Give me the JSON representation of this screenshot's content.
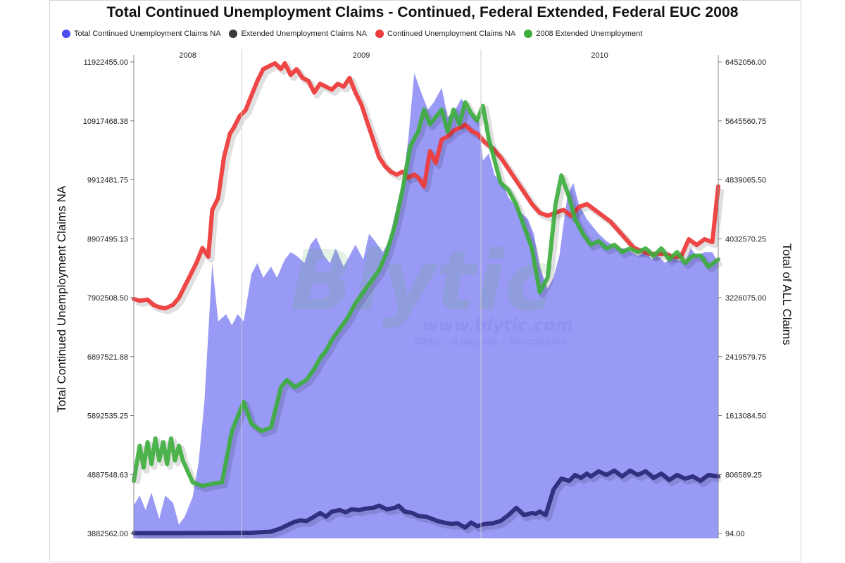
{
  "chart_data": {
    "type": "line",
    "title": "Total Continued Unemployment Claims - Continued, Federal Extended, Federal EUC 2008",
    "ylabel": "Total Continued Unemployment Claims NA",
    "y2label": "Total of ALL Claims",
    "ylim": [
      3882562.0,
      11922455.0
    ],
    "y2lim": [
      94.0,
      6452056.0
    ],
    "yticks": [
      "3882562.00",
      "4887548.63",
      "5892535.25",
      "6897521.88",
      "7902508.50",
      "8907495.13",
      "9912481.75",
      "10917468.38",
      "11922455.00"
    ],
    "y2ticks": [
      "94.00",
      "806589.25",
      "1613084.50",
      "2419579.75",
      "3226075.00",
      "4032570.25",
      "4839065.50",
      "5645560.75",
      "6452056.00"
    ],
    "xlim": [
      2007.95,
      2010.93
    ],
    "year_markers": [
      {
        "label": "2008",
        "x": 2007.95,
        "end": 2008.5
      },
      {
        "label": "2009",
        "x": 2008.5,
        "end": 2009.72
      },
      {
        "label": "2010",
        "x": 2009.72,
        "end": 2010.93
      }
    ],
    "legend_position": "top",
    "grid": false,
    "series": [
      {
        "name": "Total Continued Unemployment Claims NA",
        "kind": "area",
        "axis": "right",
        "color": "#5a5af0",
        "x": [
          2007.95,
          2007.98,
          2008.01,
          2008.04,
          2008.08,
          2008.11,
          2008.15,
          2008.18,
          2008.21,
          2008.25,
          2008.28,
          2008.31,
          2008.35,
          2008.38,
          2008.42,
          2008.45,
          2008.48,
          2008.51,
          2008.55,
          2008.58,
          2008.61,
          2008.65,
          2008.68,
          2008.72,
          2008.75,
          2008.78,
          2008.82,
          2008.85,
          2008.88,
          2008.92,
          2008.95,
          2008.98,
          2009.02,
          2009.05,
          2009.08,
          2009.12,
          2009.15,
          2009.18,
          2009.22,
          2009.25,
          2009.28,
          2009.32,
          2009.35,
          2009.38,
          2009.42,
          2009.45,
          2009.48,
          2009.52,
          2009.55,
          2009.58,
          2009.62,
          2009.65,
          2009.68,
          2009.71,
          2009.73,
          2009.76,
          2009.79,
          2009.83,
          2009.86,
          2009.89,
          2009.92,
          2009.96,
          2009.99,
          2010.02,
          2010.06,
          2010.09,
          2010.12,
          2010.16,
          2010.19,
          2010.22,
          2010.26,
          2010.29,
          2010.32,
          2010.36,
          2010.39,
          2010.42,
          2010.46,
          2010.49,
          2010.52,
          2010.56,
          2010.59,
          2010.62,
          2010.66,
          2010.69,
          2010.72,
          2010.76,
          2010.79,
          2010.82,
          2010.86,
          2010.9,
          2010.93
        ],
        "values": [
          380000,
          520000,
          320000,
          560000,
          200000,
          520000,
          420000,
          120000,
          230000,
          500000,
          960000,
          1800000,
          3700000,
          2900000,
          3000000,
          2850000,
          3000000,
          2900000,
          3550000,
          3700000,
          3500000,
          3650000,
          3500000,
          3750000,
          3850000,
          3800000,
          3700000,
          3950000,
          4050000,
          3800000,
          3700000,
          3900000,
          3650000,
          3800000,
          3950000,
          3750000,
          4100000,
          4000000,
          3850000,
          4000000,
          4350000,
          4800000,
          5400000,
          6300000,
          6000000,
          5800000,
          5900000,
          6100000,
          5700000,
          5750000,
          5950000,
          5800000,
          5700000,
          5650000,
          5100000,
          5200000,
          4900000,
          4800000,
          4600000,
          4500000,
          4400000,
          4300000,
          4100000,
          3650000,
          3350000,
          3500000,
          3800000,
          4600000,
          4800000,
          4500000,
          4300000,
          4200000,
          4100000,
          4000000,
          3950000,
          3900000,
          3900000,
          3850000,
          3800000,
          3850000,
          3750000,
          3800000,
          3700000,
          3800000,
          3750000,
          3700000,
          3900000,
          3800000,
          3850000,
          3850000,
          3700000
        ]
      },
      {
        "name": "Extended Unemployment Claims NA",
        "kind": "line",
        "axis": "right",
        "color": "#2d2a7a",
        "x": [
          2007.95,
          2008.1,
          2008.25,
          2008.4,
          2008.55,
          2008.65,
          2008.7,
          2008.73,
          2008.77,
          2008.8,
          2008.83,
          2008.87,
          2008.9,
          2008.93,
          2008.96,
          2009.0,
          2009.03,
          2009.06,
          2009.1,
          2009.13,
          2009.17,
          2009.2,
          2009.24,
          2009.28,
          2009.3,
          2009.33,
          2009.37,
          2009.4,
          2009.44,
          2009.47,
          2009.5,
          2009.53,
          2009.57,
          2009.6,
          2009.64,
          2009.67,
          2009.7,
          2009.74,
          2009.78,
          2009.82,
          2009.86,
          2009.9,
          2009.94,
          2009.98,
          2010.0,
          2010.02,
          2010.05,
          2010.09,
          2010.13,
          2010.17,
          2010.2,
          2010.23,
          2010.26,
          2010.28,
          2010.32,
          2010.36,
          2010.4,
          2010.44,
          2010.48,
          2010.52,
          2010.56,
          2010.6,
          2010.64,
          2010.68,
          2010.72,
          2010.76,
          2010.8,
          2010.84,
          2010.88,
          2010.93
        ],
        "values": [
          5000,
          5000,
          6000,
          8000,
          10000,
          25000,
          70000,
          110000,
          160000,
          180000,
          170000,
          230000,
          280000,
          230000,
          300000,
          320000,
          290000,
          330000,
          320000,
          340000,
          350000,
          380000,
          330000,
          350000,
          380000,
          300000,
          280000,
          240000,
          230000,
          200000,
          170000,
          150000,
          130000,
          140000,
          80000,
          150000,
          100000,
          130000,
          140000,
          170000,
          250000,
          350000,
          250000,
          280000,
          270000,
          300000,
          250000,
          600000,
          750000,
          720000,
          800000,
          760000,
          820000,
          780000,
          850000,
          800000,
          860000,
          780000,
          860000,
          800000,
          850000,
          760000,
          820000,
          730000,
          800000,
          750000,
          780000,
          720000,
          800000,
          780000
        ]
      },
      {
        "name": "Continued Unemployment Claims NA",
        "kind": "line",
        "axis": "left",
        "color": "#ee3c3c",
        "x": [
          2007.95,
          2007.98,
          2008.02,
          2008.05,
          2008.08,
          2008.11,
          2008.15,
          2008.18,
          2008.21,
          2008.24,
          2008.27,
          2008.3,
          2008.33,
          2008.35,
          2008.38,
          2008.41,
          2008.44,
          2008.46,
          2008.49,
          2008.52,
          2008.55,
          2008.58,
          2008.61,
          2008.64,
          2008.67,
          2008.7,
          2008.72,
          2008.75,
          2008.78,
          2008.81,
          2008.84,
          2008.87,
          2008.9,
          2008.93,
          2008.96,
          2008.99,
          2009.02,
          2009.05,
          2009.08,
          2009.11,
          2009.14,
          2009.17,
          2009.2,
          2009.23,
          2009.26,
          2009.29,
          2009.32,
          2009.35,
          2009.38,
          2009.4,
          2009.43,
          2009.46,
          2009.49,
          2009.52,
          2009.55,
          2009.58,
          2009.61,
          2009.64,
          2009.67,
          2009.7,
          2009.74,
          2009.78,
          2009.82,
          2009.86,
          2009.9,
          2009.94,
          2009.98,
          2010.02,
          2010.06,
          2010.1,
          2010.14,
          2010.18,
          2010.22,
          2010.26,
          2010.3,
          2010.34,
          2010.38,
          2010.42,
          2010.46,
          2010.5,
          2010.54,
          2010.58,
          2010.62,
          2010.66,
          2010.7,
          2010.74,
          2010.78,
          2010.82,
          2010.86,
          2010.9,
          2010.93
        ],
        "values": [
          7880000,
          7850000,
          7870000,
          7780000,
          7740000,
          7720000,
          7780000,
          7900000,
          8100000,
          8300000,
          8500000,
          8750000,
          8600000,
          9400000,
          9600000,
          10300000,
          10700000,
          10800000,
          11000000,
          11100000,
          11350000,
          11600000,
          11800000,
          11850000,
          11900000,
          11800000,
          11900000,
          11700000,
          11800000,
          11650000,
          11600000,
          11400000,
          11550000,
          11500000,
          11450000,
          11550000,
          11500000,
          11650000,
          11400000,
          11200000,
          10900000,
          10600000,
          10300000,
          10150000,
          10050000,
          10000000,
          10050000,
          9950000,
          10000000,
          9950000,
          9800000,
          10400000,
          10200000,
          10600000,
          10650000,
          10750000,
          10800000,
          10850000,
          10750000,
          10700000,
          10550000,
          10450000,
          10300000,
          10100000,
          9900000,
          9700000,
          9500000,
          9350000,
          9300000,
          9350000,
          9400000,
          9300000,
          9450000,
          9500000,
          9400000,
          9300000,
          9200000,
          9050000,
          8900000,
          8750000,
          8700000,
          8650000,
          8650000,
          8650000,
          8600000,
          8600000,
          8900000,
          8800000,
          8900000,
          8850000,
          9800000
        ]
      },
      {
        "name": "2008 Extended Unemployment",
        "kind": "line",
        "axis": "right",
        "color": "#3cae3c",
        "x": [
          2007.95,
          2007.98,
          2008.0,
          2008.02,
          2008.04,
          2008.06,
          2008.08,
          2008.1,
          2008.12,
          2008.14,
          2008.16,
          2008.18,
          2008.2,
          2008.25,
          2008.3,
          2008.35,
          2008.4,
          2008.45,
          2008.48,
          2008.51,
          2008.55,
          2008.6,
          2008.65,
          2008.7,
          2008.73,
          2008.77,
          2008.8,
          2008.83,
          2008.87,
          2008.9,
          2008.93,
          2008.96,
          2009.0,
          2009.04,
          2009.08,
          2009.12,
          2009.16,
          2009.2,
          2009.24,
          2009.28,
          2009.32,
          2009.36,
          2009.4,
          2009.43,
          2009.46,
          2009.49,
          2009.52,
          2009.55,
          2009.58,
          2009.61,
          2009.64,
          2009.67,
          2009.7,
          2009.73,
          2009.76,
          2009.79,
          2009.82,
          2009.86,
          2009.9,
          2009.94,
          2009.98,
          2010.02,
          2010.06,
          2010.1,
          2010.13,
          2010.17,
          2010.2,
          2010.24,
          2010.28,
          2010.32,
          2010.36,
          2010.4,
          2010.44,
          2010.48,
          2010.52,
          2010.56,
          2010.6,
          2010.64,
          2010.68,
          2010.72,
          2010.76,
          2010.8,
          2010.84,
          2010.88,
          2010.93
        ],
        "values": [
          720000,
          1200000,
          900000,
          1250000,
          950000,
          1300000,
          1000000,
          1250000,
          950000,
          1300000,
          1000000,
          1200000,
          1000000,
          700000,
          650000,
          680000,
          700000,
          1400000,
          1600000,
          1800000,
          1500000,
          1400000,
          1450000,
          2000000,
          2100000,
          2000000,
          2050000,
          2100000,
          2250000,
          2400000,
          2500000,
          2650000,
          2800000,
          2950000,
          3150000,
          3300000,
          3450000,
          3600000,
          3850000,
          4200000,
          4700000,
          5300000,
          5500000,
          5800000,
          5600000,
          5700000,
          5800000,
          5500000,
          5800000,
          5600000,
          5900000,
          5750000,
          5650000,
          5850000,
          5400000,
          5100000,
          4800000,
          4700000,
          4500000,
          4200000,
          3900000,
          3300000,
          3500000,
          4500000,
          4900000,
          4600000,
          4300000,
          4100000,
          3950000,
          4000000,
          3900000,
          3950000,
          3850000,
          3900000,
          3850000,
          3900000,
          3800000,
          3900000,
          3750000,
          3850000,
          3700000,
          3800000,
          3800000,
          3650000,
          3750000
        ]
      }
    ]
  },
  "watermark": {
    "brand": "Blytic",
    "url": "www.blytic.com",
    "tagline": "Data - Analysis - Discussion"
  }
}
